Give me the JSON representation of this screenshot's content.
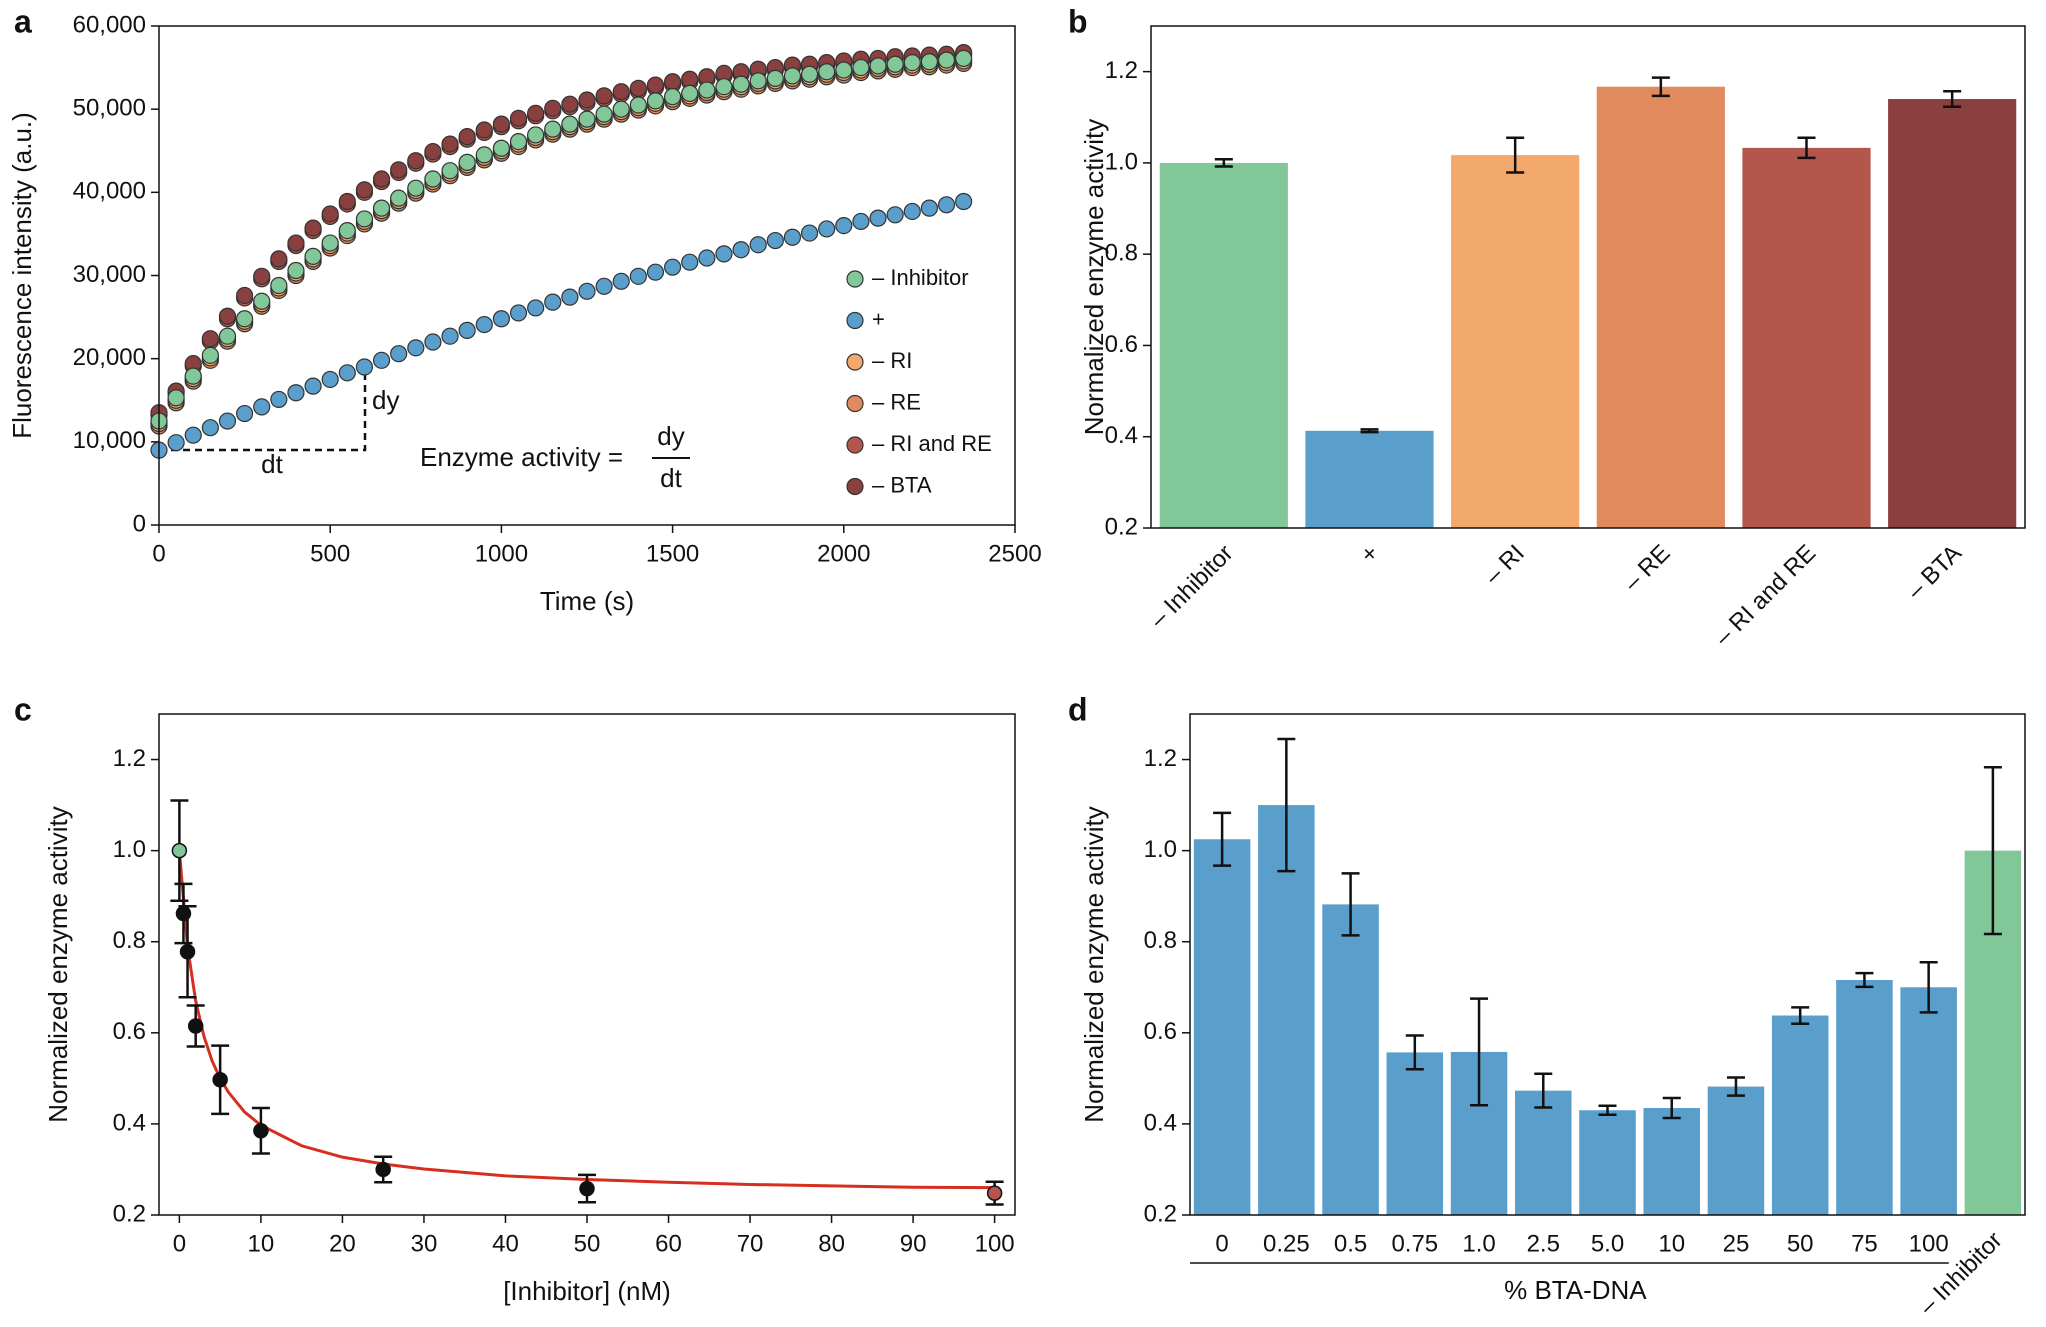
{
  "chart_data": [
    {
      "panel": "a",
      "type": "scatter",
      "xlabel": "Time (s)",
      "ylabel": "Fluorescence intensity (a.u.)",
      "xlim": [
        0,
        2500
      ],
      "xticks": [
        0,
        500,
        1000,
        1500,
        2000,
        2500
      ],
      "ylim": [
        0,
        60000
      ],
      "yticks": [
        0,
        {
          "value": 10000,
          "label": "10,000"
        },
        {
          "value": 20000,
          "label": "20,000"
        },
        {
          "value": 30000,
          "label": "30,000"
        },
        {
          "value": 40000,
          "label": "40,000"
        },
        {
          "value": 50000,
          "label": "50,000"
        },
        {
          "value": 60000,
          "label": "60,000"
        }
      ],
      "legend": "right",
      "annotations": [
        "dy",
        "dt",
        "Enzyme activity =",
        "dy",
        "dt"
      ],
      "x": [
        0,
        50,
        100,
        150,
        200,
        250,
        300,
        350,
        400,
        450,
        500,
        550,
        600,
        650,
        700,
        750,
        800,
        850,
        900,
        950,
        1000,
        1050,
        1100,
        1150,
        1200,
        1250,
        1300,
        1350,
        1400,
        1450,
        1500,
        1550,
        1600,
        1650,
        1700,
        1750,
        1800,
        1850,
        1900,
        1950,
        2000,
        2050,
        2100,
        2150,
        2200,
        2250,
        2300,
        2350
      ],
      "series": [
        {
          "name": "+",
          "color": "#5a9ecb",
          "values": [
            9000,
            9900,
            10800,
            11700,
            12500,
            13400,
            14200,
            15100,
            15900,
            16700,
            17500,
            18300,
            19000,
            19800,
            20600,
            21300,
            22000,
            22700,
            23400,
            24100,
            24800,
            25500,
            26100,
            26800,
            27400,
            28100,
            28700,
            29300,
            29900,
            30400,
            31000,
            31600,
            32100,
            32600,
            33100,
            33700,
            34200,
            34600,
            35100,
            35600,
            36000,
            36500,
            36900,
            37300,
            37700,
            38100,
            38500,
            38900
          ]
        },
        {
          "name": "– RE",
          "color": "#e08a5e",
          "values": [
            11900,
            14700,
            17300,
            19800,
            22100,
            24200,
            26300,
            28200,
            30000,
            31700,
            33300,
            34800,
            36200,
            37500,
            38700,
            39900,
            41000,
            42000,
            43000,
            43900,
            44700,
            45500,
            46300,
            47000,
            47600,
            48200,
            48800,
            49400,
            49900,
            50400,
            50900,
            51300,
            51700,
            52100,
            52400,
            52800,
            53100,
            53400,
            53600,
            53900,
            54100,
            54400,
            54600,
            54800,
            55000,
            55100,
            55300,
            55500
          ]
        },
        {
          "name": "– RI",
          "color": "#f2a96b",
          "values": [
            12200,
            15000,
            17600,
            20100,
            22400,
            24500,
            26600,
            28500,
            30300,
            32000,
            33600,
            35100,
            36500,
            37800,
            39000,
            40200,
            41300,
            42300,
            43300,
            44200,
            45000,
            45800,
            46600,
            47300,
            47900,
            48500,
            49100,
            49700,
            50200,
            50700,
            51200,
            51600,
            52000,
            52400,
            52700,
            53100,
            53400,
            53700,
            53900,
            54200,
            54400,
            54700,
            54900,
            55100,
            55300,
            55400,
            55600,
            55800
          ]
        },
        {
          "name": "– RI and RE",
          "color": "#b3564c",
          "values": [
            13200,
            15800,
            19100,
            22100,
            24800,
            27300,
            29600,
            31700,
            33600,
            35400,
            37100,
            38600,
            40000,
            41300,
            42400,
            43500,
            44600,
            45500,
            46400,
            47200,
            47900,
            48600,
            49200,
            49800,
            50300,
            50800,
            51300,
            51800,
            52200,
            52600,
            53000,
            53300,
            53600,
            54000,
            54200,
            54500,
            54700,
            55000,
            55100,
            55300,
            55500,
            55700,
            55800,
            56000,
            56100,
            56200,
            56300,
            56500
          ]
        },
        {
          "name": "– BTA",
          "color": "#8b4040",
          "values": [
            13500,
            16100,
            19400,
            22400,
            25100,
            27600,
            29900,
            32000,
            33900,
            35700,
            37400,
            38900,
            40300,
            41600,
            42700,
            43800,
            44900,
            45800,
            46700,
            47500,
            48200,
            48900,
            49500,
            50100,
            50600,
            51100,
            51600,
            52100,
            52500,
            52900,
            53300,
            53600,
            53900,
            54300,
            54500,
            54800,
            55000,
            55300,
            55400,
            55600,
            55800,
            56000,
            56100,
            56300,
            56400,
            56500,
            56600,
            56800
          ]
        },
        {
          "name": "– Inhibitor",
          "color": "#82c797",
          "values": [
            12500,
            15300,
            17900,
            20400,
            22700,
            24800,
            26900,
            28800,
            30600,
            32300,
            33900,
            35400,
            36800,
            38100,
            39300,
            40500,
            41600,
            42600,
            43600,
            44500,
            45300,
            46100,
            46900,
            47600,
            48200,
            48800,
            49400,
            50000,
            50500,
            51000,
            51500,
            51900,
            52300,
            52700,
            53000,
            53400,
            53700,
            54000,
            54200,
            54500,
            54700,
            55000,
            55200,
            55400,
            55600,
            55700,
            55900,
            56100
          ]
        }
      ],
      "legend_order": [
        5,
        0,
        2,
        1,
        3,
        4
      ]
    },
    {
      "panel": "b",
      "type": "bar",
      "ylabel": "Normalized enzyme activity",
      "ylim": [
        0.2,
        1.3
      ],
      "yticks": [
        0.2,
        0.4,
        0.6,
        0.8,
        {
          "value": 1,
          "label": "1.0"
        },
        1.2
      ],
      "categories": [
        "– Inhibitor",
        "+",
        "– RI",
        "– RE",
        "– RI and RE",
        "– BTA"
      ],
      "values": [
        1.0,
        0.413,
        1.017,
        1.167,
        1.033,
        1.14
      ],
      "errors": [
        0.008,
        0.003,
        0.038,
        0.02,
        0.022,
        0.017
      ],
      "colors": [
        "#82c797",
        "#5a9ecb",
        "#f2a96b",
        "#e08a5e",
        "#b3564c",
        "#8b4040"
      ]
    },
    {
      "panel": "c",
      "type": "scatter",
      "xlabel": "[Inhibitor] (nM)",
      "ylabel": "Normalized enzyme activity",
      "xlim": [
        -2.5,
        102.5
      ],
      "xticks": [
        0,
        10,
        20,
        30,
        40,
        50,
        60,
        70,
        80,
        90,
        100
      ],
      "ylim": [
        0.2,
        1.3
      ],
      "yticks": [
        0.2,
        0.4,
        0.6,
        0.8,
        {
          "value": 1,
          "label": "1.0"
        },
        1.2
      ],
      "points": {
        "x": [
          0,
          0.5,
          1,
          2,
          5,
          10,
          25,
          50,
          100
        ],
        "values": [
          1.0,
          0.862,
          0.778,
          0.615,
          0.497,
          0.385,
          0.3,
          0.258,
          0.248
        ],
        "errors": [
          0.11,
          0.065,
          0.1,
          0.045,
          0.075,
          0.05,
          0.028,
          0.03,
          0.025
        ],
        "colors": [
          "#82c797",
          "#111111",
          "#111111",
          "#111111",
          "#111111",
          "#111111",
          "#111111",
          "#111111",
          "#b3564c"
        ]
      },
      "fit": {
        "color": "#d62e1f",
        "x": [
          0,
          1,
          2,
          3,
          4,
          5,
          6,
          8,
          10,
          15,
          20,
          25,
          30,
          40,
          50,
          60,
          70,
          80,
          90,
          100
        ],
        "values": [
          1.0,
          0.789,
          0.67,
          0.593,
          0.539,
          0.5,
          0.47,
          0.426,
          0.397,
          0.352,
          0.327,
          0.312,
          0.301,
          0.286,
          0.278,
          0.272,
          0.267,
          0.264,
          0.261,
          0.26
        ]
      }
    },
    {
      "panel": "d",
      "type": "bar",
      "xlabel": "% BTA-DNA",
      "ylabel": "Normalized enzyme activity",
      "ylim": [
        0.2,
        1.3
      ],
      "yticks": [
        0.2,
        0.4,
        0.6,
        0.8,
        {
          "value": 1,
          "label": "1.0"
        },
        1.2
      ],
      "categories": [
        "0",
        "0.25",
        "0.5",
        "0.75",
        "1.0",
        "2.5",
        "5.0",
        "10",
        "25",
        "50",
        "75",
        "100",
        "– Inhibitor"
      ],
      "values": [
        1.025,
        1.1,
        0.882,
        0.557,
        0.558,
        0.473,
        0.43,
        0.435,
        0.482,
        0.638,
        0.716,
        0.7,
        1.0
      ],
      "errors": [
        0.058,
        0.145,
        0.068,
        0.037,
        0.117,
        0.037,
        0.01,
        0.022,
        0.02,
        0.018,
        0.015,
        0.055,
        0.183
      ],
      "colors": [
        "#5a9ecb",
        "#5a9ecb",
        "#5a9ecb",
        "#5a9ecb",
        "#5a9ecb",
        "#5a9ecb",
        "#5a9ecb",
        "#5a9ecb",
        "#5a9ecb",
        "#5a9ecb",
        "#5a9ecb",
        "#5a9ecb",
        "#82c797"
      ]
    }
  ]
}
